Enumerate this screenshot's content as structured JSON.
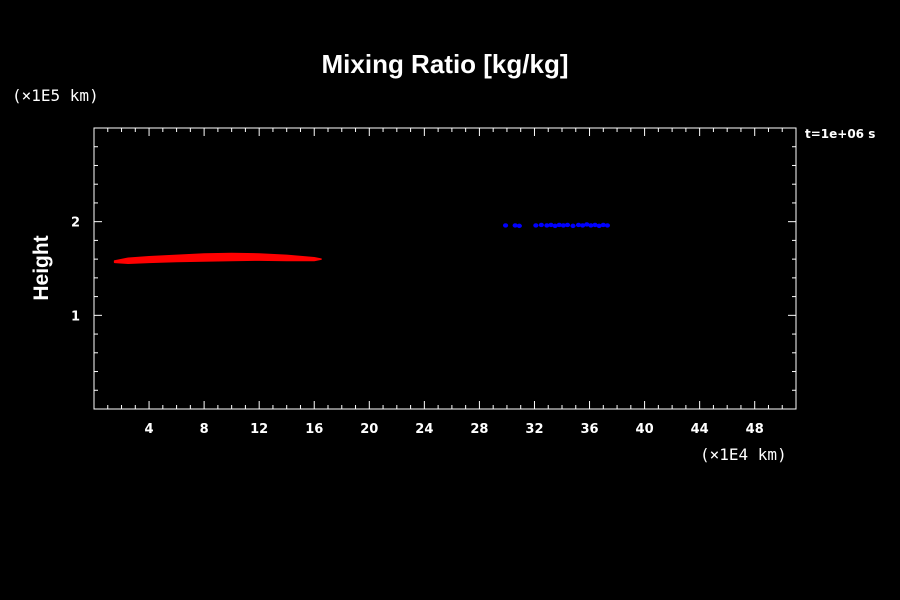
{
  "chart_data": {
    "type": "scatter",
    "title": "Mixing Ratio [kg/kg]",
    "ylabel": "Height",
    "xlabel": "",
    "x_unit": "(×1E4 km)",
    "y_unit": "(×1E5 km)",
    "time_label": "t=1e+06 s",
    "xlim": [
      0,
      51
    ],
    "ylim": [
      0,
      3
    ],
    "x_ticks": [
      4,
      8,
      12,
      16,
      20,
      24,
      28,
      32,
      36,
      40,
      44,
      48
    ],
    "y_ticks": [
      1,
      2
    ],
    "grid": false,
    "series": [
      {
        "color": "#ff0000",
        "shape": "plume",
        "outline": [
          [
            1.5,
            1.58
          ],
          [
            2.5,
            1.61
          ],
          [
            4,
            1.625
          ],
          [
            6,
            1.64
          ],
          [
            8,
            1.655
          ],
          [
            10,
            1.66
          ],
          [
            12,
            1.655
          ],
          [
            14,
            1.64
          ],
          [
            16,
            1.615
          ],
          [
            16.5,
            1.6
          ],
          [
            16,
            1.585
          ],
          [
            14,
            1.585
          ],
          [
            12,
            1.59
          ],
          [
            10,
            1.585
          ],
          [
            8,
            1.58
          ],
          [
            6,
            1.575
          ],
          [
            4,
            1.565
          ],
          [
            2.5,
            1.555
          ],
          [
            1.5,
            1.565
          ]
        ]
      },
      {
        "color": "#0000ff",
        "shape": "points",
        "points": [
          [
            29.9,
            1.96
          ],
          [
            30.6,
            1.96
          ],
          [
            30.9,
            1.955
          ],
          [
            32.1,
            1.96
          ],
          [
            32.5,
            1.965
          ],
          [
            32.9,
            1.96
          ],
          [
            33.2,
            1.965
          ],
          [
            33.5,
            1.955
          ],
          [
            33.8,
            1.965
          ],
          [
            34.1,
            1.96
          ],
          [
            34.4,
            1.965
          ],
          [
            34.8,
            1.955
          ],
          [
            35.2,
            1.965
          ],
          [
            35.5,
            1.96
          ],
          [
            35.8,
            1.97
          ],
          [
            36.1,
            1.96
          ],
          [
            36.4,
            1.965
          ],
          [
            36.7,
            1.955
          ],
          [
            37.0,
            1.965
          ],
          [
            37.3,
            1.96
          ]
        ]
      }
    ]
  }
}
